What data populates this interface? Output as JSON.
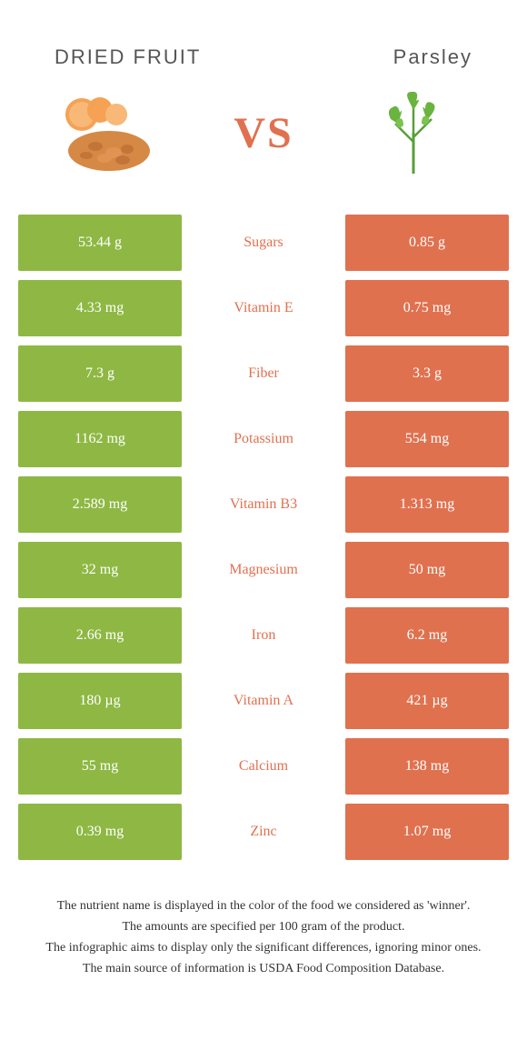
{
  "header": {
    "left_title": "DRIED FRUIT",
    "right_title": "Parsley",
    "vs_text": "VS"
  },
  "colors": {
    "green": "#8eb843",
    "orange": "#e0714f",
    "mid_green_text": "#8eb843",
    "mid_orange_text": "#e0714f"
  },
  "rows": [
    {
      "left": "53.44 g",
      "mid": "Sugars",
      "right": "0.85 g",
      "winner": "left"
    },
    {
      "left": "4.33 mg",
      "mid": "Vitamin E",
      "right": "0.75 mg",
      "winner": "left"
    },
    {
      "left": "7.3 g",
      "mid": "Fiber",
      "right": "3.3 g",
      "winner": "left"
    },
    {
      "left": "1162 mg",
      "mid": "Potassium",
      "right": "554 mg",
      "winner": "left"
    },
    {
      "left": "2.589 mg",
      "mid": "Vitamin B3",
      "right": "1.313 mg",
      "winner": "left"
    },
    {
      "left": "32 mg",
      "mid": "Magnesium",
      "right": "50 mg",
      "winner": "right"
    },
    {
      "left": "2.66 mg",
      "mid": "Iron",
      "right": "6.2 mg",
      "winner": "right"
    },
    {
      "left": "180 µg",
      "mid": "Vitamin A",
      "right": "421 µg",
      "winner": "right"
    },
    {
      "left": "55 mg",
      "mid": "Calcium",
      "right": "138 mg",
      "winner": "right"
    },
    {
      "left": "0.39 mg",
      "mid": "Zinc",
      "right": "1.07 mg",
      "winner": "right"
    }
  ],
  "footer": {
    "line1": "The nutrient name is displayed in the color of the food we considered as 'winner'.",
    "line2": "The amounts are specified per 100 gram of the product.",
    "line3": "The infographic aims to display only the significant differences, ignoring minor ones.",
    "line4": "The main source of information is USDA Food Composition Database."
  }
}
